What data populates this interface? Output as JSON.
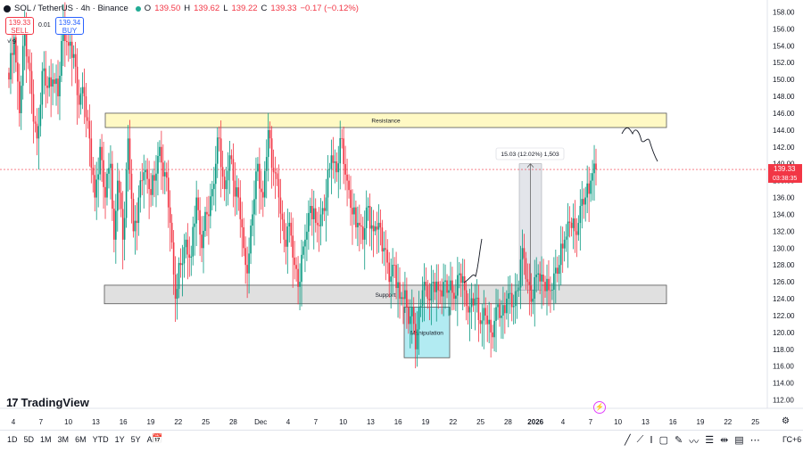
{
  "header": {
    "symbol": "SOL / TetherUS · 4h · Binance",
    "o_label": "O",
    "o_value": "139.50",
    "h_label": "H",
    "h_value": "139.62",
    "l_label": "L",
    "l_value": "139.22",
    "c_label": "C",
    "c_value": "139.33",
    "change": "−0.17 (−0.12%)"
  },
  "trade": {
    "sell_price": "139.33",
    "sell_label": "SELL",
    "spread": "0.01",
    "buy_price": "139.34",
    "buy_label": "BUY",
    "collapse_glyph": "˅ 9"
  },
  "brand": {
    "logo": "17",
    "name": "TradingView"
  },
  "price_tag": {
    "price": "139.33",
    "countdown": "03:38:35",
    "color": "#f23645"
  },
  "toolbar": {
    "timeframes": [
      "1D",
      "5D",
      "1M",
      "3M",
      "6M",
      "YTD",
      "1Y",
      "5Y",
      "All"
    ],
    "calendar_icon": "calendar-icon",
    "tools": [
      "line-tool-icon",
      "ray-tool-icon",
      "text-tool-icon",
      "rectangle-tool-icon",
      "brush-tool-icon",
      "pattern-tool-icon",
      "fib-tool-icon",
      "measure-tool-icon",
      "position-tool-icon",
      "magnet-tool-icon"
    ],
    "timezone": "ГС+6"
  },
  "colors": {
    "up": "#089981",
    "down": "#f23645",
    "resistance_fill": "#fff9c4",
    "support_fill": "#e0e0e0",
    "manip_fill": "#b2ebf2"
  },
  "chart_data": {
    "type": "candlestick",
    "series_name": "SOL / TetherUS",
    "interval": "4h",
    "ylim": [
      111,
      159
    ],
    "y_ticks": [
      "158.00",
      "156.00",
      "154.00",
      "152.00",
      "150.00",
      "148.00",
      "146.00",
      "144.00",
      "142.00",
      "140.00",
      "138.00",
      "136.00",
      "134.00",
      "132.00",
      "130.00",
      "128.00",
      "126.00",
      "124.00",
      "122.00",
      "120.00",
      "118.00",
      "116.00",
      "114.00",
      "112.00"
    ],
    "x_ticks": [
      "4",
      "7",
      "10",
      "13",
      "16",
      "19",
      "22",
      "25",
      "28",
      "Dec",
      "4",
      "7",
      "10",
      "13",
      "16",
      "19",
      "22",
      "25",
      "28",
      "2026",
      "4",
      "7",
      "10",
      "13",
      "16",
      "19",
      "22",
      "25"
    ],
    "bold_x_ticks": [
      "2026"
    ],
    "last_price": 139.33,
    "anchors": [
      [
        0,
        150
      ],
      [
        3,
        155
      ],
      [
        6,
        146
      ],
      [
        9,
        156
      ],
      [
        12,
        151
      ],
      [
        14,
        145
      ],
      [
        16,
        143
      ],
      [
        19,
        151
      ],
      [
        22,
        149
      ],
      [
        25,
        150
      ],
      [
        28,
        148
      ],
      [
        31,
        157
      ],
      [
        34,
        154
      ],
      [
        37,
        153
      ],
      [
        40,
        147
      ],
      [
        43,
        148
      ],
      [
        46,
        143
      ],
      [
        49,
        136
      ],
      [
        52,
        142
      ],
      [
        55,
        136
      ],
      [
        58,
        140
      ],
      [
        60,
        131
      ],
      [
        62,
        138
      ],
      [
        65,
        131
      ],
      [
        68,
        143
      ],
      [
        71,
        132
      ],
      [
        74,
        136
      ],
      [
        77,
        139
      ],
      [
        80,
        137
      ],
      [
        83,
        138
      ],
      [
        86,
        142
      ],
      [
        89,
        139
      ],
      [
        92,
        133
      ],
      [
        95,
        124
      ],
      [
        98,
        128
      ],
      [
        101,
        131
      ],
      [
        104,
        129
      ],
      [
        107,
        136
      ],
      [
        110,
        130
      ],
      [
        113,
        134
      ],
      [
        116,
        137
      ],
      [
        120,
        143
      ],
      [
        123,
        137
      ],
      [
        126,
        141
      ],
      [
        128,
        138
      ],
      [
        131,
        136
      ],
      [
        134,
        130
      ],
      [
        136,
        127
      ],
      [
        139,
        134
      ],
      [
        142,
        140
      ],
      [
        145,
        136
      ],
      [
        148,
        144
      ],
      [
        151,
        139
      ],
      [
        154,
        136
      ],
      [
        157,
        131
      ],
      [
        160,
        133
      ],
      [
        163,
        128
      ],
      [
        166,
        126
      ],
      [
        169,
        131
      ],
      [
        172,
        135
      ],
      [
        175,
        133
      ],
      [
        178,
        134
      ],
      [
        181,
        136
      ],
      [
        184,
        141
      ],
      [
        187,
        139
      ],
      [
        190,
        143
      ],
      [
        193,
        138
      ],
      [
        196,
        134
      ],
      [
        199,
        133
      ],
      [
        202,
        131
      ],
      [
        205,
        135
      ],
      [
        208,
        132
      ],
      [
        211,
        133
      ],
      [
        214,
        130
      ],
      [
        217,
        126
      ],
      [
        220,
        128
      ],
      [
        223,
        124
      ],
      [
        226,
        125
      ],
      [
        228,
        121
      ],
      [
        230,
        123
      ],
      [
        232,
        118
      ],
      [
        234,
        123
      ],
      [
        236,
        125
      ],
      [
        239,
        124
      ],
      [
        242,
        126
      ],
      [
        245,
        125
      ],
      [
        248,
        126
      ],
      [
        251,
        125
      ],
      [
        254,
        124
      ],
      [
        257,
        127
      ],
      [
        260,
        125
      ],
      [
        263,
        123
      ],
      [
        266,
        124
      ],
      [
        269,
        121
      ],
      [
        272,
        122
      ],
      [
        275,
        120
      ],
      [
        278,
        123
      ],
      [
        281,
        122
      ],
      [
        284,
        124
      ],
      [
        287,
        123
      ],
      [
        290,
        125
      ],
      [
        293,
        130
      ],
      [
        296,
        126
      ],
      [
        299,
        124
      ],
      [
        302,
        127
      ],
      [
        305,
        126
      ],
      [
        308,
        125
      ],
      [
        311,
        127
      ],
      [
        314,
        128
      ],
      [
        317,
        131
      ],
      [
        320,
        133
      ],
      [
        323,
        132
      ],
      [
        326,
        135
      ],
      [
        329,
        136
      ],
      [
        332,
        138
      ],
      [
        335,
        139.33
      ]
    ],
    "annotations": {
      "resistance": {
        "label": "Resistance",
        "y_top": 146.0,
        "y_bottom": 144.3
      },
      "support": {
        "label": "Support",
        "y_top": 125.6,
        "y_bottom": 123.4
      },
      "manipulation": {
        "label": "Manipulation",
        "y_top": 123.0,
        "y_bottom": 117.0
      },
      "measure": {
        "label": "15.03 (12.02%) 1,503",
        "y_from": 125.0,
        "y_to": 140.0
      }
    }
  }
}
